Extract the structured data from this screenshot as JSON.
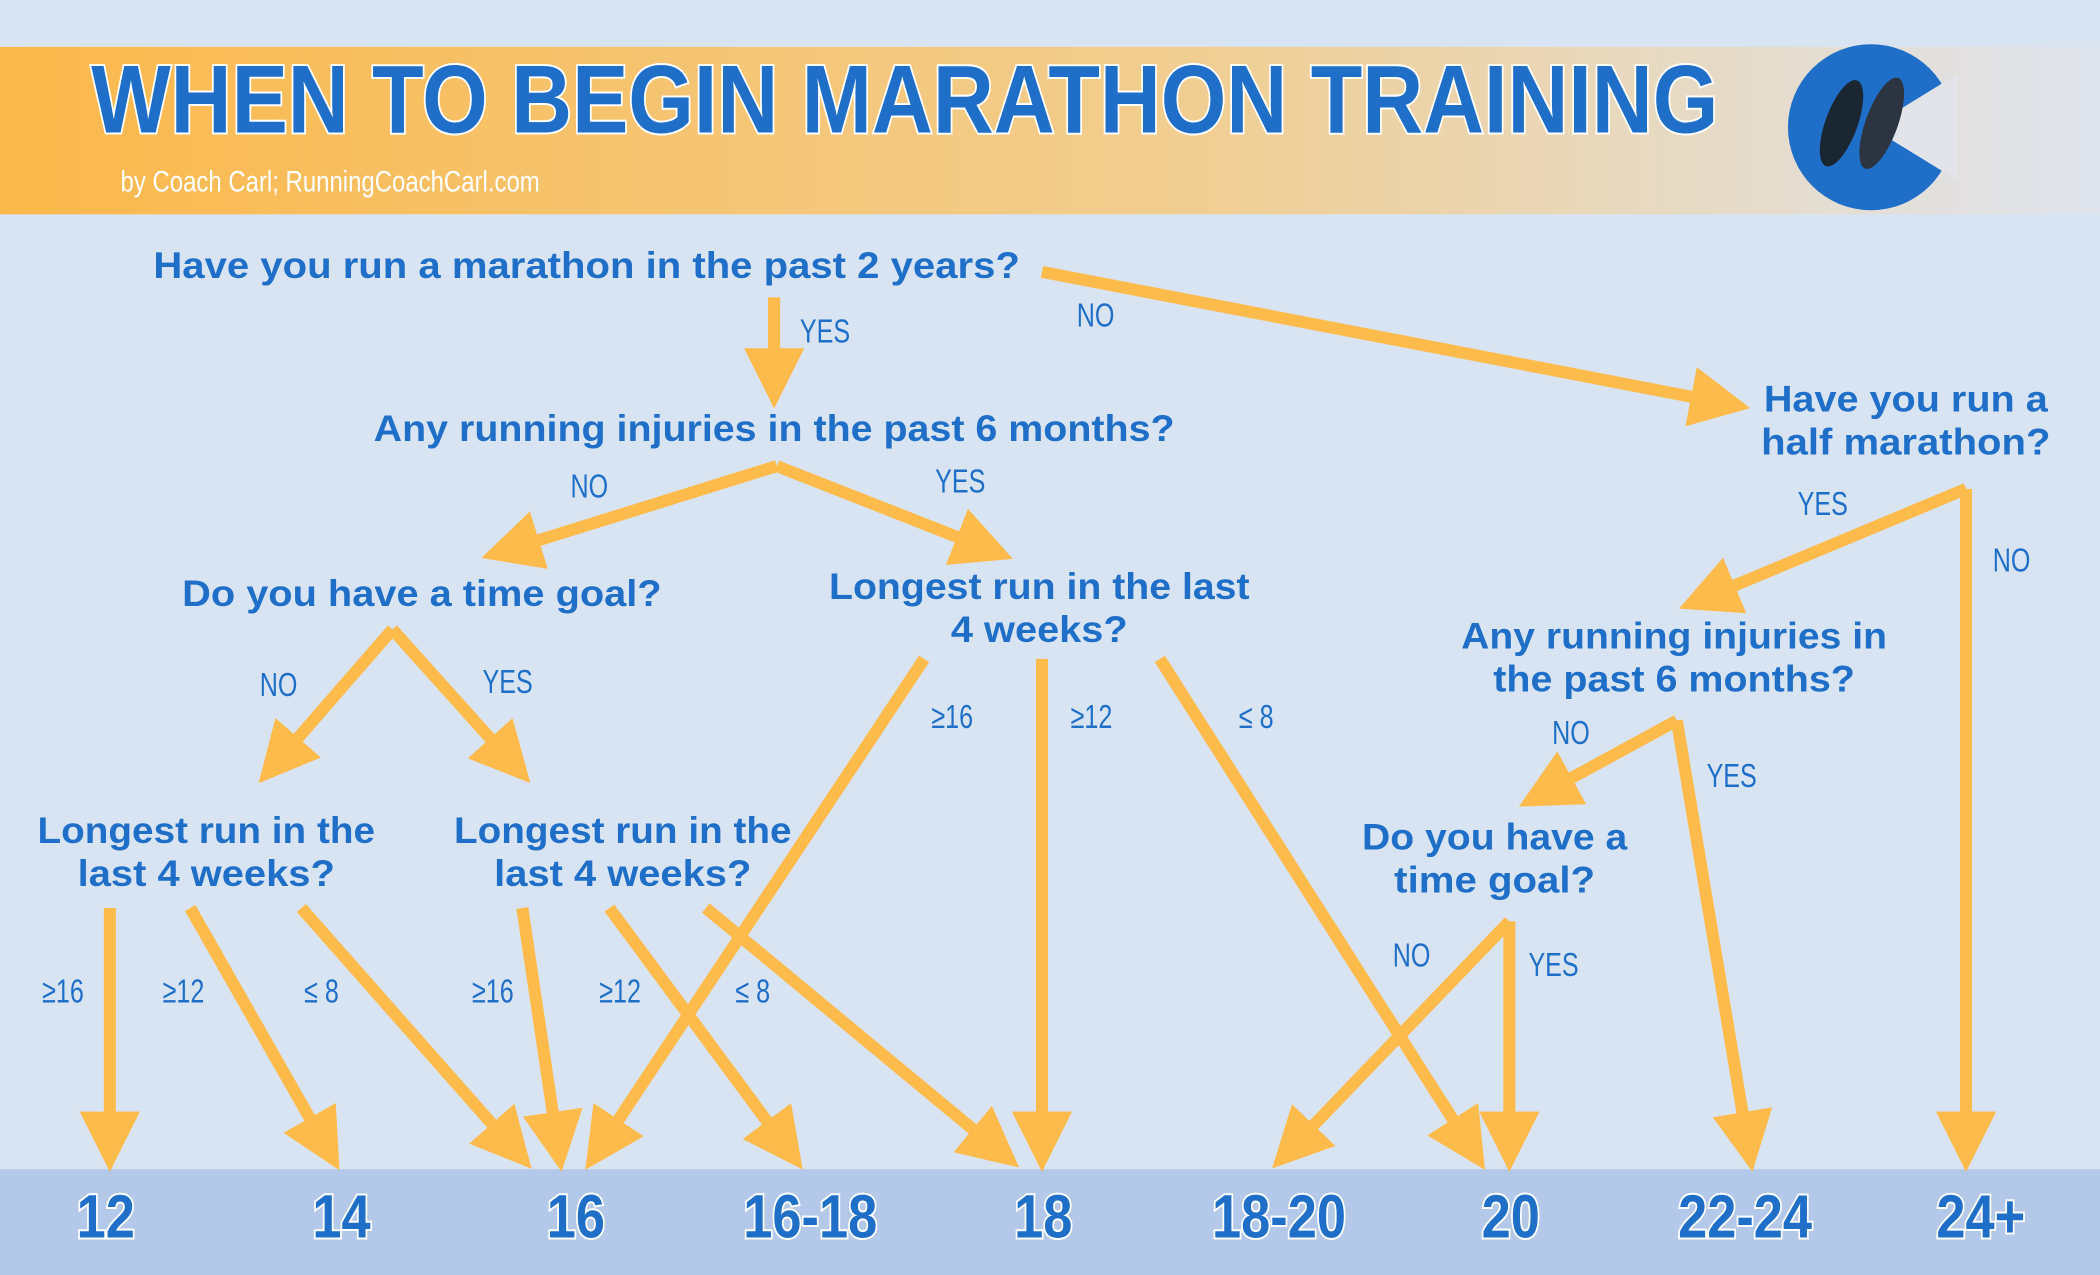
{
  "header": {
    "title": "WHEN TO BEGIN MARATHON TRAINING",
    "byline": "by Coach Carl; RunningCoachCarl.com"
  },
  "nodes": [
    {
      "lines": [
        "Have you run a marathon in the past 2 years?"
      ]
    },
    {
      "lines": [
        "Any running injuries in the past 6 months?"
      ]
    },
    {
      "lines": [
        "Have you run a",
        "half marathon?"
      ]
    },
    {
      "lines": [
        "Do you have a time goal?"
      ]
    },
    {
      "lines": [
        "Longest run in the last",
        "4 weeks?"
      ]
    },
    {
      "lines": [
        "Any running injuries in",
        "the past 6 months?"
      ]
    },
    {
      "lines": [
        "Longest run in the",
        "last 4 weeks?"
      ]
    },
    {
      "lines": [
        "Longest run in the",
        "last 4 weeks?"
      ]
    },
    {
      "lines": [
        "Do you have a",
        "time goal?"
      ]
    }
  ],
  "edge_labels": [
    "YES",
    "NO",
    "NO",
    "YES",
    "YES",
    "NO",
    "NO",
    "YES",
    "≥16",
    "≥12",
    "≤ 8",
    "NO",
    "YES",
    "≥16",
    "≥12",
    "≤ 8",
    "≥16",
    "≥12",
    "≤ 8",
    "NO",
    "YES"
  ],
  "outcomes": [
    "12",
    "14",
    "16",
    "16-18",
    "18",
    "18-20",
    "20",
    "22-24",
    "24+"
  ]
}
